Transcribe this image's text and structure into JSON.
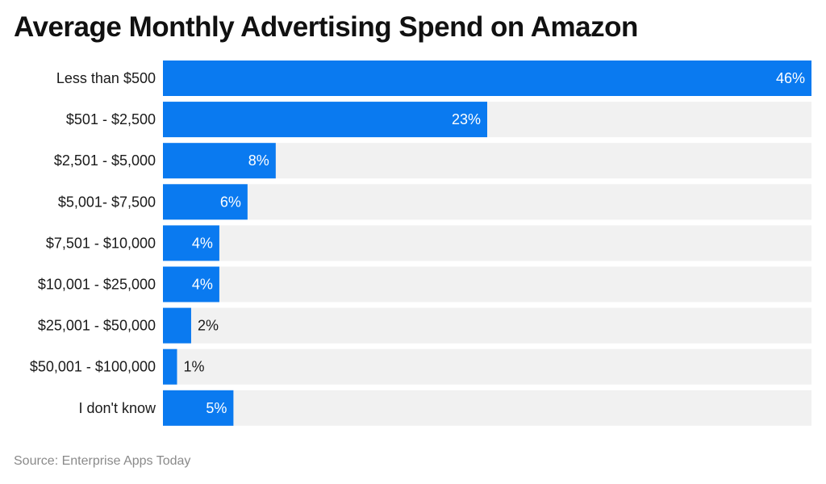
{
  "chart_data": {
    "type": "bar",
    "orientation": "horizontal",
    "title": "Average Monthly Advertising Spend on Amazon",
    "categories": [
      "Less than $500",
      "$501 - $2,500",
      "$2,501 - $5,000",
      "$5,001- $7,500",
      "$7,501 - $10,000",
      "$10,001 - $25,000",
      "$25,001 - $50,000",
      "$50,001 - $100,000",
      "I don't know"
    ],
    "values": [
      46,
      23,
      8,
      6,
      4,
      4,
      2,
      1,
      5
    ],
    "value_labels": [
      "46%",
      "23%",
      "8%",
      "6%",
      "4%",
      "4%",
      "2%",
      "1%",
      "5%"
    ],
    "xlim": [
      0,
      46
    ],
    "grid": false,
    "legend": "none"
  },
  "footer": {
    "source": "Source: Enterprise Apps Today"
  },
  "colors": {
    "bar": "#0a7af0",
    "track": "#f1f1f1",
    "label_inside": "#ffffff",
    "label_outside": "#1a1a1a"
  }
}
